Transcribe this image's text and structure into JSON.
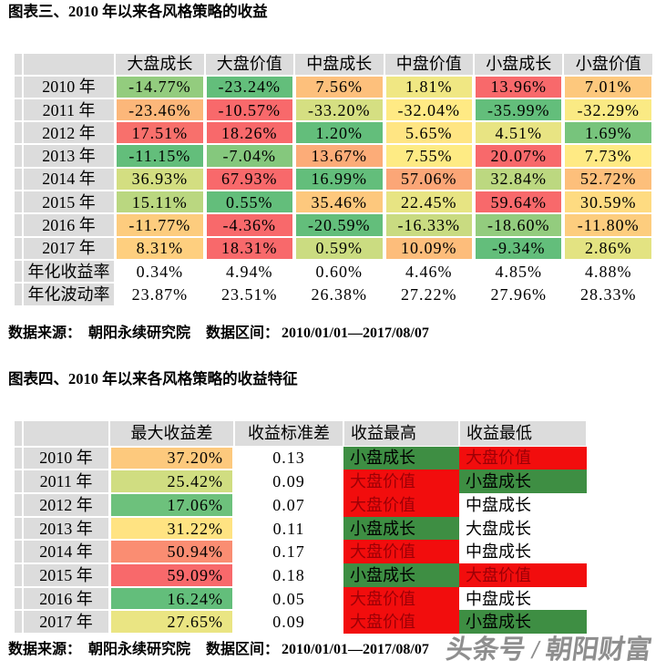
{
  "page": {
    "background": "#ffffff"
  },
  "watermark": {
    "text": "头条号 / 朝阳财富",
    "color": "#8e8e8e"
  },
  "source_note": {
    "source_label": "数据来源：",
    "source_value": "朝阳永续研究院",
    "range_label": "数据区间：",
    "range_value": "2010/01/01—2017/08/07"
  },
  "palette": {
    "header_gray": "#DCDCDC",
    "scale_green": "#63BE7B",
    "scale_yellow": "#FFEB84",
    "scale_red": "#F8696B",
    "solid_green": "#3E8E43",
    "solid_red": "#F20D0D",
    "dark_red_text": "#9C0006"
  },
  "chart_data": [
    {
      "id": "figure3",
      "type": "heatmap",
      "title": "图表三、2010 年以来各风格策略的收益",
      "columns": [
        "大盘成长",
        "大盘价值",
        "中盘成长",
        "中盘价值",
        "小盘成长",
        "小盘价值"
      ],
      "rows": [
        {
          "label": "2010 年",
          "cells": [
            {
              "text": "-14.77%",
              "value": -14.77,
              "bg": "#93CC7E"
            },
            {
              "text": "-23.24%",
              "value": -23.24,
              "bg": "#63BE7B"
            },
            {
              "text": "7.56%",
              "value": 7.56,
              "bg": "#FDC07C"
            },
            {
              "text": "1.81%",
              "value": 1.81,
              "bg": "#F0E783"
            },
            {
              "text": "13.96%",
              "value": 13.96,
              "bg": "#F8696B"
            },
            {
              "text": "7.01%",
              "value": 7.01,
              "bg": "#FDC87D"
            }
          ]
        },
        {
          "label": "2011 年",
          "cells": [
            {
              "text": "-23.46%",
              "value": -23.46,
              "bg": "#FCB77A"
            },
            {
              "text": "-10.57%",
              "value": -10.57,
              "bg": "#F8696B"
            },
            {
              "text": "-33.20%",
              "value": -33.2,
              "bg": "#D5DF82"
            },
            {
              "text": "-32.04%",
              "value": -32.04,
              "bg": "#FFEA84"
            },
            {
              "text": "-35.99%",
              "value": -35.99,
              "bg": "#63BE7B"
            },
            {
              "text": "-32.29%",
              "value": -32.29,
              "bg": "#FAEA84"
            }
          ]
        },
        {
          "label": "2012 年",
          "cells": [
            {
              "text": "17.51%",
              "value": 17.51,
              "bg": "#F8706C"
            },
            {
              "text": "18.26%",
              "value": 18.26,
              "bg": "#F8696B"
            },
            {
              "text": "1.20%",
              "value": 1.2,
              "bg": "#63BE7B"
            },
            {
              "text": "5.65%",
              "value": 5.65,
              "bg": "#FFE583"
            },
            {
              "text": "4.51%",
              "value": 4.51,
              "bg": "#E8E483"
            },
            {
              "text": "1.69%",
              "value": 1.69,
              "bg": "#77C47C"
            }
          ]
        },
        {
          "label": "2013 年",
          "cells": [
            {
              "text": "-11.15%",
              "value": -11.15,
              "bg": "#63BE7B"
            },
            {
              "text": "-7.04%",
              "value": -7.04,
              "bg": "#85C87D"
            },
            {
              "text": "13.67%",
              "value": 13.67,
              "bg": "#FCAC78"
            },
            {
              "text": "7.55%",
              "value": 7.55,
              "bg": "#FEEB84"
            },
            {
              "text": "20.07%",
              "value": 20.07,
              "bg": "#F8696B"
            },
            {
              "text": "7.73%",
              "value": 7.73,
              "bg": "#FFEA84"
            }
          ]
        },
        {
          "label": "2014 年",
          "cells": [
            {
              "text": "36.93%",
              "value": 36.93,
              "bg": "#D3DE81"
            },
            {
              "text": "67.93%",
              "value": 67.93,
              "bg": "#F8696B"
            },
            {
              "text": "16.99%",
              "value": 16.99,
              "bg": "#63BE7B"
            },
            {
              "text": "57.06%",
              "value": 57.06,
              "bg": "#FBA677"
            },
            {
              "text": "32.84%",
              "value": 32.84,
              "bg": "#BCD880"
            },
            {
              "text": "52.72%",
              "value": 52.72,
              "bg": "#FDBF7B"
            }
          ]
        },
        {
          "label": "2015 年",
          "cells": [
            {
              "text": "15.11%",
              "value": 15.11,
              "bg": "#BAD780"
            },
            {
              "text": "0.55%",
              "value": 0.55,
              "bg": "#63BE7B"
            },
            {
              "text": "35.46%",
              "value": 35.46,
              "bg": "#FDC87D"
            },
            {
              "text": "22.45%",
              "value": 22.45,
              "bg": "#E7E483"
            },
            {
              "text": "59.64%",
              "value": 59.64,
              "bg": "#F8696B"
            },
            {
              "text": "30.59%",
              "value": 30.59,
              "bg": "#FEDB81"
            }
          ]
        },
        {
          "label": "2016 年",
          "cells": [
            {
              "text": "-11.77%",
              "value": -11.77,
              "bg": "#FDCC7E"
            },
            {
              "text": "-4.36%",
              "value": -4.36,
              "bg": "#F8696B"
            },
            {
              "text": "-20.59%",
              "value": -20.59,
              "bg": "#63BE7B"
            },
            {
              "text": "-16.33%",
              "value": -16.33,
              "bg": "#C9DB81"
            },
            {
              "text": "-18.60%",
              "value": -18.6,
              "bg": "#93CC7E"
            },
            {
              "text": "-11.80%",
              "value": -11.8,
              "bg": "#FDCD7E"
            }
          ]
        },
        {
          "label": "2017 年",
          "cells": [
            {
              "text": "8.31%",
              "value": 8.31,
              "bg": "#FECF7F"
            },
            {
              "text": "18.31%",
              "value": 18.31,
              "bg": "#F8696B"
            },
            {
              "text": "0.59%",
              "value": 0.59,
              "bg": "#CBDC81"
            },
            {
              "text": "10.09%",
              "value": 10.09,
              "bg": "#FDBD7B"
            },
            {
              "text": "-9.34%",
              "value": -9.34,
              "bg": "#63BE7B"
            },
            {
              "text": "2.86%",
              "value": 2.86,
              "bg": "#E3E382"
            }
          ]
        },
        {
          "label": "年化收益率",
          "cells": [
            {
              "text": "0.34%",
              "value": 0.34,
              "bg": null
            },
            {
              "text": "4.94%",
              "value": 4.94,
              "bg": null
            },
            {
              "text": "0.60%",
              "value": 0.6,
              "bg": null
            },
            {
              "text": "4.46%",
              "value": 4.46,
              "bg": null
            },
            {
              "text": "4.85%",
              "value": 4.85,
              "bg": null
            },
            {
              "text": "4.88%",
              "value": 4.88,
              "bg": null
            }
          ]
        },
        {
          "label": "年化波动率",
          "cells": [
            {
              "text": "23.87%",
              "value": 23.87,
              "bg": null
            },
            {
              "text": "23.51%",
              "value": 23.51,
              "bg": null
            },
            {
              "text": "26.38%",
              "value": 26.38,
              "bg": null
            },
            {
              "text": "27.22%",
              "value": 27.22,
              "bg": null
            },
            {
              "text": "27.96%",
              "value": 27.96,
              "bg": null
            },
            {
              "text": "28.33%",
              "value": 28.33,
              "bg": null
            }
          ]
        }
      ]
    },
    {
      "id": "figure4",
      "type": "table",
      "title": "图表四、2010 年以来各风格策略的收益特征",
      "columns": [
        "最大收益差",
        "收益标准差",
        "收益最高",
        "收益最低"
      ],
      "rows": [
        {
          "label": "2010 年",
          "max_spread": {
            "text": "37.20%",
            "value": 37.2,
            "bg": "#FDC97D"
          },
          "std": {
            "text": "0.13",
            "value": 0.13
          },
          "best": {
            "text": "小盘成长",
            "bg": "#3E8E43",
            "fg": "#000000"
          },
          "worst": {
            "text": "大盘价值",
            "bg": "#F20D0D",
            "fg": "#9C0006"
          }
        },
        {
          "label": "2011 年",
          "max_spread": {
            "text": "25.42%",
            "value": 25.42,
            "bg": "#D0DD81"
          },
          "std": {
            "text": "0.09",
            "value": 0.09
          },
          "best": {
            "text": "大盘价值",
            "bg": "#F20D0D",
            "fg": "#9C0006"
          },
          "worst": {
            "text": "小盘成长",
            "bg": "#3E8E43",
            "fg": "#000000"
          }
        },
        {
          "label": "2012 年",
          "max_spread": {
            "text": "17.06%",
            "value": 17.06,
            "bg": "#6DC17C"
          },
          "std": {
            "text": "0.07",
            "value": 0.07
          },
          "best": {
            "text": "大盘价值",
            "bg": "#F20D0D",
            "fg": "#9C0006"
          },
          "worst": {
            "text": "中盘成长",
            "bg": null,
            "fg": "#000000"
          }
        },
        {
          "label": "2013 年",
          "max_spread": {
            "text": "31.22%",
            "value": 31.22,
            "bg": "#FFE382"
          },
          "std": {
            "text": "0.11",
            "value": 0.11
          },
          "best": {
            "text": "小盘成长",
            "bg": "#3E8E43",
            "fg": "#000000"
          },
          "worst": {
            "text": "大盘成长",
            "bg": null,
            "fg": "#000000"
          }
        },
        {
          "label": "2014 年",
          "max_spread": {
            "text": "50.94%",
            "value": 50.94,
            "bg": "#FA8D72"
          },
          "std": {
            "text": "0.17",
            "value": 0.17
          },
          "best": {
            "text": "大盘价值",
            "bg": "#F20D0D",
            "fg": "#9C0006"
          },
          "worst": {
            "text": "中盘成长",
            "bg": null,
            "fg": "#000000"
          }
        },
        {
          "label": "2015 年",
          "max_spread": {
            "text": "59.09%",
            "value": 59.09,
            "bg": "#F8696B"
          },
          "std": {
            "text": "0.18",
            "value": 0.18
          },
          "best": {
            "text": "小盘成长",
            "bg": "#3E8E43",
            "fg": "#000000"
          },
          "worst": {
            "text": "大盘价值",
            "bg": "#F20D0D",
            "fg": "#9C0006"
          }
        },
        {
          "label": "2016 年",
          "max_spread": {
            "text": "16.24%",
            "value": 16.24,
            "bg": "#63BE7B"
          },
          "std": {
            "text": "0.05",
            "value": 0.05
          },
          "best": {
            "text": "大盘价值",
            "bg": "#F20D0D",
            "fg": "#9C0006"
          },
          "worst": {
            "text": "中盘成长",
            "bg": null,
            "fg": "#000000"
          }
        },
        {
          "label": "2017 年",
          "max_spread": {
            "text": "27.65%",
            "value": 27.65,
            "bg": "#EAE583"
          },
          "std": {
            "text": "0.09",
            "value": 0.09
          },
          "best": {
            "text": "大盘价值",
            "bg": "#F20D0D",
            "fg": "#9C0006"
          },
          "worst": {
            "text": "小盘成长",
            "bg": "#3E8E43",
            "fg": "#000000"
          }
        }
      ]
    }
  ]
}
